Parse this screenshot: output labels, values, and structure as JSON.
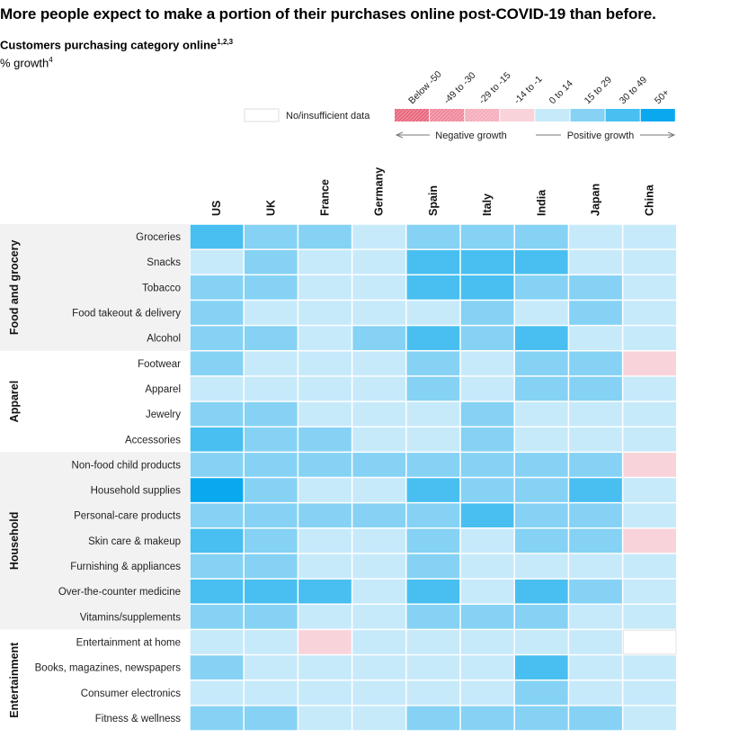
{
  "title": "More people expect to make a portion of their purchases online post-COVID-19 than before.",
  "subtitle": "Customers purchasing category online",
  "subtitle_footnote": "1,2,3",
  "unit_label": "% growth",
  "unit_footnote": "4",
  "legend": {
    "no_data_label": "No/insufficient data",
    "bins": [
      {
        "label": "Below -50",
        "color": "#e8637a",
        "hatch": true
      },
      {
        "label": "-49 to -30",
        "color": "#ef8499",
        "hatch": true
      },
      {
        "label": "-29 to -15",
        "color": "#f4aab8",
        "hatch": true
      },
      {
        "label": "-14 to -1",
        "color": "#f9d3da",
        "hatch": false
      },
      {
        "label": "0 to 14",
        "color": "#c7eafb",
        "hatch": false
      },
      {
        "label": "15 to 29",
        "color": "#85d2f5",
        "hatch": false
      },
      {
        "label": "30 to 49",
        "color": "#48bff0",
        "hatch": false
      },
      {
        "label": "50+",
        "color": "#0aa9ef",
        "hatch": false
      }
    ],
    "negative_label": "Negative growth",
    "positive_label": "Positive growth"
  },
  "chart_data": {
    "type": "heatmap",
    "value_encoding": "bin index: 0=Below -50, 1=-49 to -30, 2=-29 to -15, 3=-14 to -1, 4=0 to 14, 5=15 to 29, 6=30 to 49, 7=50+, null=No/insufficient data",
    "columns": [
      "US",
      "UK",
      "France",
      "Germany",
      "Spain",
      "Italy",
      "India",
      "Japan",
      "China"
    ],
    "groups": [
      {
        "name": "Food and grocery",
        "rows": [
          {
            "label": "Groceries",
            "values": [
              6,
              5,
              5,
              4,
              5,
              5,
              5,
              4,
              4
            ]
          },
          {
            "label": "Snacks",
            "values": [
              4,
              5,
              4,
              4,
              6,
              6,
              6,
              4,
              4
            ]
          },
          {
            "label": "Tobacco",
            "values": [
              5,
              5,
              4,
              4,
              6,
              6,
              5,
              5,
              4
            ]
          },
          {
            "label": "Food takeout & delivery",
            "values": [
              5,
              4,
              4,
              4,
              4,
              5,
              4,
              5,
              4
            ]
          },
          {
            "label": "Alcohol",
            "values": [
              5,
              5,
              4,
              5,
              6,
              5,
              6,
              4,
              4
            ]
          }
        ]
      },
      {
        "name": "Apparel",
        "rows": [
          {
            "label": "Footwear",
            "values": [
              5,
              4,
              4,
              4,
              5,
              4,
              5,
              5,
              3
            ]
          },
          {
            "label": "Apparel",
            "values": [
              4,
              4,
              4,
              4,
              5,
              4,
              5,
              5,
              4
            ]
          },
          {
            "label": "Jewelry",
            "values": [
              5,
              5,
              4,
              4,
              4,
              5,
              4,
              4,
              4
            ]
          },
          {
            "label": "Accessories",
            "values": [
              6,
              5,
              5,
              4,
              4,
              5,
              4,
              4,
              4
            ]
          }
        ]
      },
      {
        "name": "Household",
        "rows": [
          {
            "label": "Non-food child products",
            "values": [
              5,
              5,
              5,
              5,
              5,
              5,
              5,
              5,
              3
            ]
          },
          {
            "label": "Household supplies",
            "values": [
              7,
              5,
              4,
              4,
              6,
              5,
              5,
              6,
              4
            ]
          },
          {
            "label": "Personal-care products",
            "values": [
              5,
              5,
              5,
              5,
              5,
              6,
              5,
              5,
              4
            ]
          },
          {
            "label": "Skin care & makeup",
            "values": [
              6,
              5,
              4,
              4,
              5,
              4,
              5,
              5,
              3
            ]
          },
          {
            "label": "Furnishing & appliances",
            "values": [
              5,
              5,
              4,
              4,
              5,
              4,
              4,
              4,
              4
            ]
          },
          {
            "label": "Over-the-counter medicine",
            "values": [
              6,
              6,
              6,
              4,
              6,
              4,
              6,
              5,
              4
            ]
          },
          {
            "label": "Vitamins/supplements",
            "values": [
              5,
              5,
              4,
              4,
              5,
              5,
              5,
              4,
              4
            ]
          }
        ]
      },
      {
        "name": "Entertainment",
        "rows": [
          {
            "label": "Entertainment at home",
            "values": [
              4,
              4,
              3,
              4,
              4,
              4,
              4,
              4,
              null
            ]
          },
          {
            "label": "Books, magazines, newspapers",
            "values": [
              5,
              4,
              4,
              4,
              4,
              4,
              6,
              4,
              4
            ]
          },
          {
            "label": "Consumer electronics",
            "values": [
              4,
              4,
              4,
              4,
              4,
              4,
              5,
              4,
              4
            ]
          },
          {
            "label": "Fitness & wellness",
            "values": [
              5,
              5,
              4,
              4,
              5,
              5,
              5,
              5,
              4
            ]
          }
        ]
      }
    ]
  }
}
